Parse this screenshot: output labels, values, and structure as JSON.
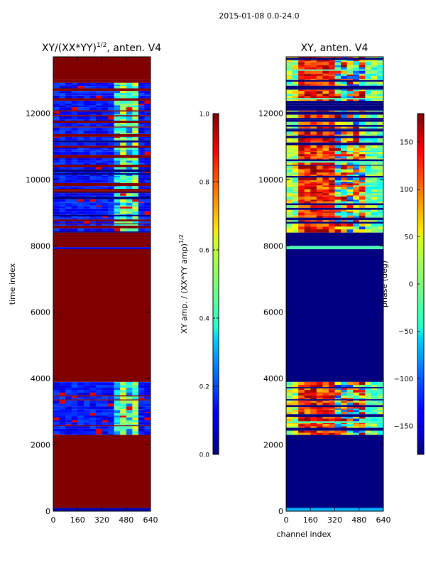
{
  "suptitle": "2015-01-08 0.0-24.0",
  "chart_data": [
    {
      "type": "heatmap",
      "title_prefix": "XY/(XX*YY)",
      "title_exponent": "1/2",
      "title_suffix": ", anten. V4",
      "xlabel": "",
      "ylabel": "time index",
      "xlim": [
        0,
        640
      ],
      "ylim": [
        0,
        13700
      ],
      "xticks": [
        "0",
        "160",
        "320",
        "480",
        "640"
      ],
      "yticks": [
        "0",
        "2000",
        "4000",
        "6000",
        "8000",
        "10000",
        "12000"
      ],
      "colorbar": {
        "label_prefix": "XY amp. / (XX*YY amp)",
        "label_exponent": "1/2",
        "range": [
          0.0,
          1.0
        ],
        "ticks": [
          "0.0",
          "0.2",
          "0.4",
          "0.6",
          "0.8",
          "1.0"
        ],
        "colormap": "jet"
      },
      "regions": [
        {
          "t0": 0,
          "t1": 100,
          "value": 0.05
        },
        {
          "t0": 100,
          "t1": 2300,
          "value": 1.0
        },
        {
          "t0": 2300,
          "t1": 3900,
          "value": 0.12,
          "striped": true
        },
        {
          "t0": 3900,
          "t1": 7900,
          "value": 1.0
        },
        {
          "t0": 7900,
          "t1": 7960,
          "value": 0.1
        },
        {
          "t0": 7960,
          "t1": 8400,
          "value": 1.0
        },
        {
          "t0": 8400,
          "t1": 13000,
          "value": 0.12,
          "striped": true
        },
        {
          "t0": 13000,
          "t1": 13700,
          "value": 1.0
        }
      ]
    },
    {
      "type": "heatmap",
      "title": "XY, anten. V4",
      "xlabel": "channel index",
      "ylabel": "",
      "xlim": [
        0,
        640
      ],
      "ylim": [
        0,
        13700
      ],
      "xticks": [
        "0",
        "160",
        "320",
        "480",
        "640"
      ],
      "yticks": [
        "0",
        "2000",
        "4000",
        "6000",
        "8000",
        "10000",
        "12000"
      ],
      "colorbar": {
        "label": "phase (deg)",
        "range": [
          -180,
          180
        ],
        "ticks": [
          "150",
          "100",
          "50",
          "0",
          "−50",
          "−100",
          "−150"
        ],
        "tick_values": [
          150,
          100,
          50,
          0,
          -50,
          -100,
          -150
        ],
        "colormap": "jet"
      },
      "regions": [
        {
          "t0": 0,
          "t1": 100,
          "value": 0.3
        },
        {
          "t0": 100,
          "t1": 2300,
          "value": 0.0
        },
        {
          "t0": 2300,
          "t1": 3900,
          "value": 0.85,
          "striped": true
        },
        {
          "t0": 3900,
          "t1": 7900,
          "value": 0.0
        },
        {
          "t0": 7900,
          "t1": 8000,
          "value": 0.45
        },
        {
          "t0": 8000,
          "t1": 8400,
          "value": 0.0
        },
        {
          "t0": 8400,
          "t1": 13000,
          "value": 0.85,
          "striped": true
        },
        {
          "t0": 13000,
          "t1": 13700,
          "value": 0.6,
          "striped": true
        }
      ]
    }
  ]
}
